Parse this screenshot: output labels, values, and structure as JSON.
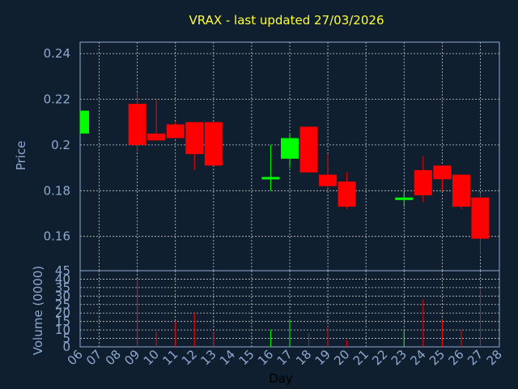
{
  "chart_data": [
    {
      "type": "candlestick",
      "title": "VRAX - last updated 27/03/2026",
      "ylabel": "Price",
      "ylim": [
        0.145,
        0.245
      ],
      "yticks": [
        "0.16",
        "0.18",
        "0.2",
        "0.22",
        "0.24"
      ],
      "ytick_values": [
        0.16,
        0.18,
        0.2,
        0.22,
        0.24
      ],
      "grid": true,
      "up_color": "#00ff00",
      "down_color": "#ff0000",
      "candles": [
        {
          "day": "06",
          "open": 0.205,
          "high": 0.215,
          "low": 0.205,
          "close": 0.215
        },
        {
          "day": "09",
          "open": 0.218,
          "high": 0.223,
          "low": 0.197,
          "close": 0.2
        },
        {
          "day": "10",
          "open": 0.205,
          "high": 0.22,
          "low": 0.202,
          "close": 0.202
        },
        {
          "day": "11",
          "open": 0.209,
          "high": 0.21,
          "low": 0.203,
          "close": 0.203
        },
        {
          "day": "12",
          "open": 0.21,
          "high": 0.21,
          "low": 0.189,
          "close": 0.196
        },
        {
          "day": "13",
          "open": 0.21,
          "high": 0.21,
          "low": 0.191,
          "close": 0.191
        },
        {
          "day": "16",
          "open": 0.185,
          "high": 0.2,
          "low": 0.18,
          "close": 0.186
        },
        {
          "day": "17",
          "open": 0.194,
          "high": 0.205,
          "low": 0.19,
          "close": 0.203
        },
        {
          "day": "18",
          "open": 0.208,
          "high": 0.208,
          "low": 0.188,
          "close": 0.188
        },
        {
          "day": "19",
          "open": 0.187,
          "high": 0.196,
          "low": 0.181,
          "close": 0.182
        },
        {
          "day": "20",
          "open": 0.184,
          "high": 0.188,
          "low": 0.172,
          "close": 0.173
        },
        {
          "day": "23",
          "open": 0.176,
          "high": 0.18,
          "low": 0.173,
          "close": 0.177
        },
        {
          "day": "24",
          "open": 0.189,
          "high": 0.195,
          "low": 0.175,
          "close": 0.178
        },
        {
          "day": "25",
          "open": 0.191,
          "high": 0.191,
          "low": 0.18,
          "close": 0.185
        },
        {
          "day": "26",
          "open": 0.187,
          "high": 0.187,
          "low": 0.172,
          "close": 0.173
        },
        {
          "day": "27",
          "open": 0.177,
          "high": 0.179,
          "low": 0.152,
          "close": 0.159
        }
      ]
    },
    {
      "type": "bar",
      "ylabel": "Volume (0000)",
      "xlabel": "Day",
      "ylim": [
        0,
        45
      ],
      "yticks": [
        "0",
        "5",
        "10",
        "15",
        "20",
        "25",
        "30",
        "35",
        "40",
        "45"
      ],
      "ytick_values": [
        0,
        5,
        10,
        15,
        20,
        25,
        30,
        35,
        40,
        45
      ],
      "categories": [
        "06",
        "07",
        "08",
        "09",
        "10",
        "11",
        "12",
        "13",
        "14",
        "15",
        "16",
        "17",
        "18",
        "19",
        "20",
        "21",
        "22",
        "23",
        "24",
        "25",
        "26",
        "27",
        "28"
      ],
      "values": [
        0,
        0,
        0,
        40,
        9,
        15,
        20,
        9,
        0,
        0,
        10,
        16,
        8,
        12,
        4,
        0,
        0,
        10,
        28,
        16,
        10,
        34,
        0
      ],
      "bar_colors": [
        "#ff0000",
        "#ff0000",
        "#ff0000",
        "#ff0000",
        "#ff0000",
        "#ff0000",
        "#ff0000",
        "#ff0000",
        "#ff0000",
        "#ff0000",
        "#00ff00",
        "#00ff00",
        "#ff0000",
        "#ff0000",
        "#ff0000",
        "#ff0000",
        "#ff0000",
        "#00ff00",
        "#ff0000",
        "#ff0000",
        "#ff0000",
        "#ff0000",
        "#ff0000"
      ]
    }
  ]
}
